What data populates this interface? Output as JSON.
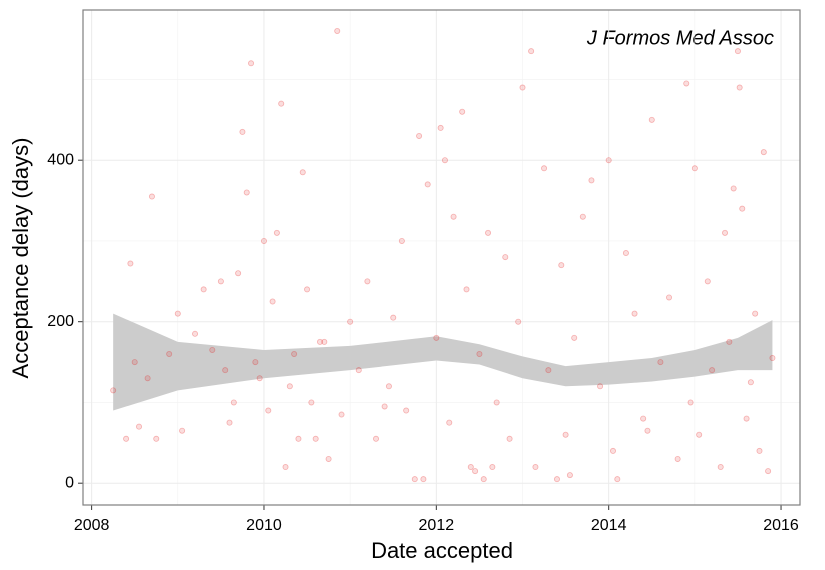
{
  "chart_data": {
    "type": "scatter",
    "annotation": "J Formos Med Assoc",
    "x_label": "Date accepted",
    "y_label": "Acceptance delay (days)",
    "color": "#e41a1c",
    "band_color": "#cccccc",
    "grid": true,
    "xlim": [
      2007.9,
      2016.22
    ],
    "ylim": [
      -27,
      586
    ],
    "xticks": [
      2008,
      2010,
      2012,
      2014,
      2016
    ],
    "yticks": [
      0,
      200,
      400
    ],
    "xminor": [
      2009,
      2011,
      2013,
      2015
    ],
    "yminor": [
      100,
      300,
      500
    ],
    "x": [
      2008.25,
      2008.4,
      2008.45,
      2008.5,
      2008.55,
      2008.65,
      2008.7,
      2008.75,
      2008.9,
      2009.0,
      2009.05,
      2009.2,
      2009.4,
      2009.5,
      2009.55,
      2009.6,
      2009.65,
      2009.7,
      2009.75,
      2009.8,
      2009.85,
      2009.9,
      2010.0,
      2010.05,
      2010.1,
      2010.15,
      2010.2,
      2010.25,
      2010.3,
      2010.35,
      2010.45,
      2010.5,
      2010.55,
      2010.6,
      2010.7,
      2010.75,
      2010.85,
      2010.9,
      2011.0,
      2011.1,
      2011.2,
      2011.3,
      2011.45,
      2011.5,
      2011.6,
      2011.65,
      2011.75,
      2011.8,
      2011.9,
      2012.0,
      2012.05,
      2012.1,
      2012.15,
      2012.2,
      2012.3,
      2012.35,
      2012.45,
      2012.5,
      2012.55,
      2012.6,
      2012.7,
      2012.8,
      2012.85,
      2012.95,
      2013.0,
      2013.1,
      2013.15,
      2013.25,
      2013.3,
      2013.45,
      2013.5,
      2013.55,
      2013.6,
      2013.7,
      2013.8,
      2013.9,
      2014.0,
      2014.05,
      2014.1,
      2014.2,
      2014.3,
      2014.4,
      2014.5,
      2014.6,
      2014.7,
      2014.8,
      2014.9,
      2014.95,
      2015.0,
      2015.05,
      2015.15,
      2015.2,
      2015.3,
      2015.35,
      2015.4,
      2015.45,
      2015.5,
      2015.52,
      2015.55,
      2015.6,
      2015.65,
      2015.7,
      2015.75,
      2015.8,
      2015.85,
      2015.9,
      2009.3,
      2010.4,
      2011.4,
      2012.4,
      2013.4,
      2014.45,
      2012.65,
      2011.85,
      2010.65,
      2009.95
    ],
    "values": [
      115,
      55,
      272,
      150,
      70,
      130,
      355,
      55,
      160,
      210,
      65,
      185,
      165,
      250,
      140,
      75,
      100,
      260,
      435,
      360,
      520,
      150,
      300,
      90,
      225,
      310,
      470,
      20,
      120,
      160,
      385,
      240,
      100,
      55,
      175,
      30,
      560,
      85,
      200,
      140,
      250,
      55,
      120,
      205,
      300,
      90,
      5,
      430,
      370,
      180,
      440,
      400,
      75,
      330,
      460,
      240,
      15,
      160,
      5,
      310,
      100,
      280,
      55,
      200,
      490,
      535,
      20,
      390,
      140,
      270,
      60,
      10,
      180,
      330,
      375,
      120,
      400,
      40,
      5,
      285,
      210,
      80,
      450,
      150,
      230,
      30,
      495,
      100,
      390,
      60,
      250,
      140,
      20,
      310,
      175,
      365,
      535,
      490,
      340,
      80,
      125,
      210,
      40,
      410,
      15,
      155,
      240,
      55,
      95,
      20,
      5,
      65,
      20,
      5,
      175,
      130
    ],
    "band": {
      "x": [
        2008.25,
        2009,
        2010,
        2011,
        2012,
        2012.5,
        2013,
        2013.5,
        2014,
        2014.5,
        2015,
        2015.5,
        2015.9
      ],
      "upper": [
        210,
        175,
        165,
        170,
        182,
        172,
        157,
        145,
        150,
        155,
        165,
        180,
        202
      ],
      "lower": [
        90,
        115,
        130,
        140,
        152,
        147,
        130,
        120,
        122,
        126,
        132,
        140,
        140
      ]
    }
  }
}
